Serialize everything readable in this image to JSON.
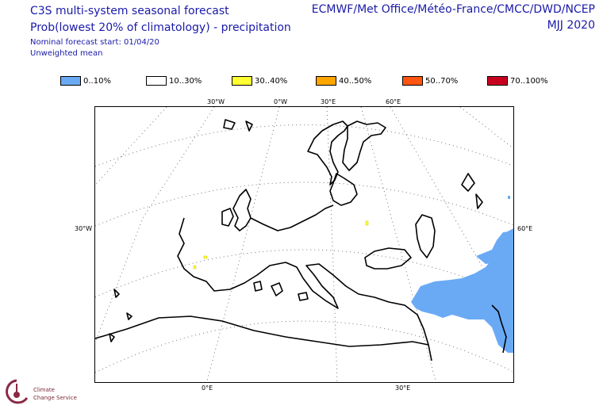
{
  "header": {
    "title": "C3S multi-system seasonal forecast",
    "subtitle": "Prob(lowest 20% of climatology) - precipitation",
    "nominal_start": "Nominal forecast start: 01/04/20",
    "mean_type": "Unweighted mean",
    "centres": "ECMWF/Met Office/Météo-France/CMCC/DWD/NCEP",
    "season": "MJJ 2020"
  },
  "legend": [
    {
      "label": "0..10%",
      "color": "#6aaaf5"
    },
    {
      "label": "10..30%",
      "color": "#ffffff"
    },
    {
      "label": "30..40%",
      "color": "#ffff33"
    },
    {
      "label": "40..50%",
      "color": "#ffa500"
    },
    {
      "label": "50..70%",
      "color": "#ff5511"
    },
    {
      "label": "70..100%",
      "color": "#c80020"
    }
  ],
  "map": {
    "graticule_labels": {
      "top": [
        "30°W",
        "0°W",
        "30°E",
        "60°E"
      ],
      "left": [
        "30°W"
      ],
      "right": [
        "60°E"
      ],
      "bottom": [
        "0°E",
        "30°E"
      ]
    },
    "coastline_color": "#000000",
    "graticule_color": "#555555"
  },
  "logo": {
    "line1": "Climate",
    "line2": "Change Service"
  }
}
